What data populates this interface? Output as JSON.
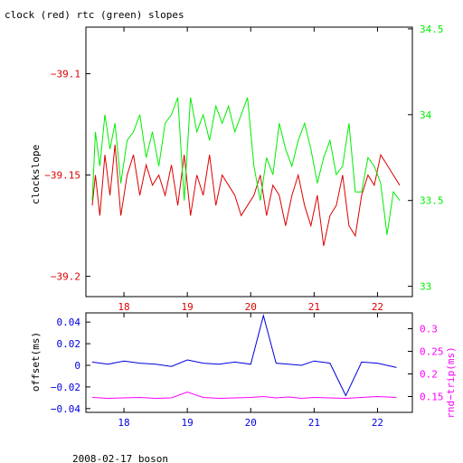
{
  "title": "clock (red) rtc (green) slopes",
  "footer": "2008-02-17 boson",
  "colors": {
    "red": "#dd0000",
    "green": "#00ee00",
    "blue": "#0000dd",
    "magenta": "#ff00ff",
    "axis": "#000000"
  },
  "chart_data": [
    {
      "type": "line",
      "panel": "top",
      "xlim": [
        17.4,
        22.55
      ],
      "x_ticks": [
        18,
        19,
        20,
        21,
        22
      ],
      "x_tick_labels": [
        "18",
        "19",
        "20",
        "21",
        "22"
      ],
      "ylabel": "clockslope",
      "ylim": [
        -39.21,
        -39.077
      ],
      "y_ticks": [
        -39.1,
        -39.15,
        -39.2
      ],
      "y_tick_labels": [
        "−39.1",
        "−39.15",
        "−39.2"
      ],
      "y2lim": [
        32.94,
        34.51
      ],
      "y2_ticks": [
        34.5,
        34,
        33.5,
        33
      ],
      "y2_tick_labels": [
        "34.5",
        "34",
        "33.5",
        "33"
      ],
      "series": [
        {
          "axis": "left",
          "color": "red",
          "x": [
            17.5,
            17.55,
            17.62,
            17.7,
            17.78,
            17.86,
            17.95,
            18.05,
            18.15,
            18.25,
            18.35,
            18.45,
            18.55,
            18.65,
            18.75,
            18.85,
            18.95,
            19.05,
            19.15,
            19.25,
            19.35,
            19.45,
            19.55,
            19.65,
            19.75,
            19.85,
            19.95,
            20.05,
            20.15,
            20.25,
            20.35,
            20.45,
            20.55,
            20.65,
            20.75,
            20.85,
            20.95,
            21.05,
            21.15,
            21.25,
            21.35,
            21.45,
            21.55,
            21.65,
            21.75,
            21.85,
            21.95,
            22.05,
            22.15,
            22.25,
            22.35
          ],
          "values": [
            -39.165,
            -39.15,
            -39.17,
            -39.14,
            -39.16,
            -39.135,
            -39.17,
            -39.15,
            -39.14,
            -39.16,
            -39.145,
            -39.155,
            -39.15,
            -39.16,
            -39.145,
            -39.165,
            -39.14,
            -39.17,
            -39.15,
            -39.16,
            -39.14,
            -39.165,
            -39.15,
            -39.155,
            -39.16,
            -39.17,
            -39.165,
            -39.16,
            -39.15,
            -39.17,
            -39.155,
            -39.16,
            -39.175,
            -39.16,
            -39.15,
            -39.165,
            -39.175,
            -39.16,
            -39.185,
            -39.17,
            -39.165,
            -39.15,
            -39.175,
            -39.18,
            -39.16,
            -39.15,
            -39.155,
            -39.14,
            -39.145,
            -39.15,
            -39.155
          ]
        },
        {
          "axis": "right",
          "color": "green",
          "x": [
            17.5,
            17.55,
            17.62,
            17.7,
            17.78,
            17.86,
            17.95,
            18.05,
            18.15,
            18.25,
            18.35,
            18.45,
            18.55,
            18.65,
            18.75,
            18.85,
            18.95,
            19.05,
            19.15,
            19.25,
            19.35,
            19.45,
            19.55,
            19.65,
            19.75,
            19.85,
            19.95,
            20.05,
            20.15,
            20.25,
            20.35,
            20.45,
            20.55,
            20.65,
            20.75,
            20.85,
            20.95,
            21.05,
            21.15,
            21.25,
            21.35,
            21.45,
            21.55,
            21.65,
            21.75,
            21.85,
            21.95,
            22.05,
            22.15,
            22.25,
            22.35
          ],
          "values": [
            33.5,
            33.9,
            33.7,
            34.0,
            33.8,
            33.95,
            33.6,
            33.85,
            33.9,
            34.0,
            33.75,
            33.9,
            33.7,
            33.95,
            34.0,
            34.1,
            33.5,
            34.1,
            33.9,
            34.0,
            33.85,
            34.05,
            33.95,
            34.05,
            33.9,
            34.0,
            34.1,
            33.7,
            33.5,
            33.75,
            33.65,
            33.95,
            33.8,
            33.7,
            33.85,
            33.95,
            33.8,
            33.6,
            33.75,
            33.85,
            33.65,
            33.7,
            33.95,
            33.55,
            33.55,
            33.75,
            33.7,
            33.6,
            33.3,
            33.55,
            33.5
          ]
        }
      ]
    },
    {
      "type": "line",
      "panel": "bottom",
      "xlim": [
        17.4,
        22.55
      ],
      "x_ticks": [
        18,
        19,
        20,
        21,
        22
      ],
      "x_tick_labels": [
        "18",
        "19",
        "20",
        "21",
        "22"
      ],
      "ylabel": "offset(ms)",
      "ylim": [
        -0.0435,
        0.0485
      ],
      "y_ticks": [
        0.04,
        0.02,
        0,
        -0.02,
        -0.04
      ],
      "y_tick_labels": [
        "0.04",
        "0.02",
        "0",
        "−0.02",
        "−0.04"
      ],
      "y2label": "rnd−trip(ms)",
      "y2lim": [
        0.115,
        0.335
      ],
      "y2_ticks": [
        0.3,
        0.25,
        0.2,
        0.15
      ],
      "y2_tick_labels": [
        "0.3",
        "0.25",
        "0.2",
        "0.15"
      ],
      "series": [
        {
          "axis": "left",
          "color": "blue",
          "x": [
            17.5,
            17.75,
            18.0,
            18.25,
            18.5,
            18.75,
            19.0,
            19.25,
            19.5,
            19.75,
            20.0,
            20.2,
            20.4,
            20.6,
            20.8,
            21.0,
            21.25,
            21.5,
            21.75,
            22.0,
            22.3
          ],
          "values": [
            0.003,
            0.001,
            0.004,
            0.002,
            0.001,
            -0.001,
            0.005,
            0.002,
            0.001,
            0.003,
            0.001,
            0.046,
            0.002,
            0.001,
            0.0,
            0.004,
            0.002,
            -0.028,
            0.003,
            0.002,
            -0.002
          ]
        },
        {
          "axis": "right",
          "color": "magenta",
          "x": [
            17.5,
            17.75,
            18.0,
            18.25,
            18.5,
            18.75,
            19.0,
            19.25,
            19.5,
            19.75,
            20.0,
            20.2,
            20.4,
            20.6,
            20.8,
            21.0,
            21.25,
            21.5,
            21.75,
            22.0,
            22.3
          ],
          "values": [
            0.148,
            0.146,
            0.147,
            0.148,
            0.146,
            0.147,
            0.16,
            0.148,
            0.146,
            0.147,
            0.148,
            0.15,
            0.147,
            0.149,
            0.146,
            0.148,
            0.147,
            0.146,
            0.148,
            0.15,
            0.148
          ]
        }
      ]
    }
  ]
}
